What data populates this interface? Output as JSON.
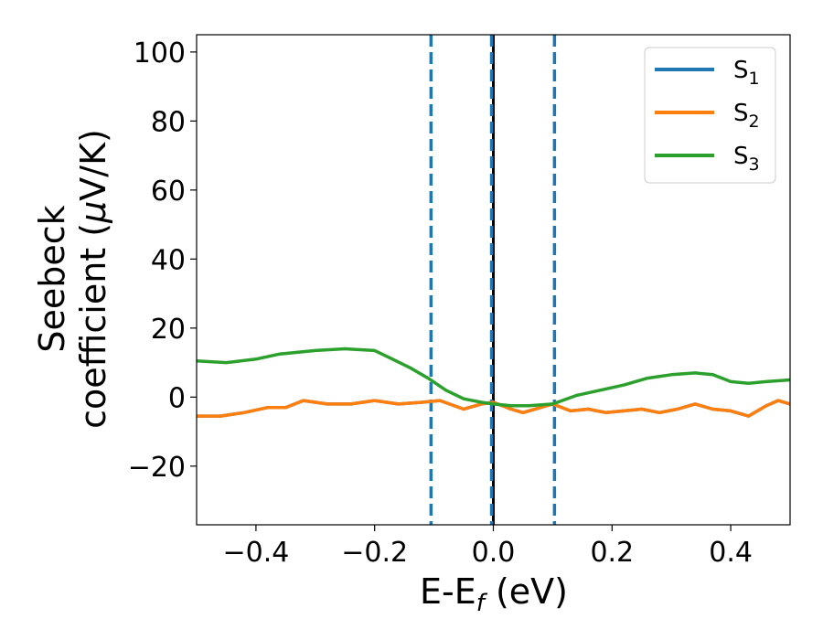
{
  "chart_data": {
    "type": "line",
    "xlabel": {
      "main": "E-E",
      "sub": "f",
      "unit": " (eV)"
    },
    "ylabel": {
      "line1": "Seebeck",
      "line2_prefix": "coefficient  (",
      "mu": "μ",
      "line2_suffix": "V/K)"
    },
    "xlim": [
      -0.5,
      0.5
    ],
    "ylim": [
      -37,
      105
    ],
    "xticks": [
      -0.4,
      -0.2,
      0.0,
      0.2,
      0.4
    ],
    "xtick_labels": [
      "−0.4",
      "−0.2",
      "0.0",
      "0.2",
      "0.4"
    ],
    "yticks": [
      -20,
      0,
      20,
      40,
      60,
      80,
      100
    ],
    "ytick_labels": [
      "−20",
      "0",
      "20",
      "40",
      "60",
      "80",
      "100"
    ],
    "legend_position": "top-right",
    "series": [
      {
        "name": "S",
        "subscript": "1",
        "color": "#1f77b4",
        "x": [
          -0.5,
          -0.46,
          -0.42,
          -0.38,
          -0.35,
          -0.32,
          -0.28,
          -0.24,
          -0.2,
          -0.16,
          -0.12,
          -0.09,
          -0.05,
          -0.02,
          0.0,
          0.03,
          0.05,
          0.08,
          0.1,
          0.13,
          0.16,
          0.19,
          0.22,
          0.25,
          0.28,
          0.31,
          0.34,
          0.37,
          0.4,
          0.43,
          0.46,
          0.48,
          0.5
        ],
        "y": [
          -5.5,
          -5.5,
          -4.5,
          -3.0,
          -3.0,
          -1.0,
          -2.0,
          -2.0,
          -1.0,
          -2.0,
          -1.5,
          -1.0,
          -3.5,
          -2.0,
          -1.5,
          -3.5,
          -4.5,
          -3.0,
          -2.0,
          -4.0,
          -3.5,
          -4.5,
          -4.0,
          -3.5,
          -4.5,
          -3.5,
          -2.0,
          -3.5,
          -4.0,
          -5.5,
          -2.5,
          -1.0,
          -2.0
        ]
      },
      {
        "name": "S",
        "subscript": "2",
        "color": "#ff7f0e",
        "x": [
          -0.5,
          -0.46,
          -0.42,
          -0.38,
          -0.35,
          -0.32,
          -0.28,
          -0.24,
          -0.2,
          -0.16,
          -0.12,
          -0.09,
          -0.05,
          -0.02,
          0.0,
          0.03,
          0.05,
          0.08,
          0.1,
          0.13,
          0.16,
          0.19,
          0.22,
          0.25,
          0.28,
          0.31,
          0.34,
          0.37,
          0.4,
          0.43,
          0.46,
          0.48,
          0.5
        ],
        "y": [
          -5.5,
          -5.5,
          -4.5,
          -3.0,
          -3.0,
          -1.0,
          -2.0,
          -2.0,
          -1.0,
          -2.0,
          -1.5,
          -1.0,
          -3.5,
          -2.0,
          -1.5,
          -3.5,
          -4.5,
          -3.0,
          -2.0,
          -4.0,
          -3.5,
          -4.5,
          -4.0,
          -3.5,
          -4.5,
          -3.5,
          -2.0,
          -3.5,
          -4.0,
          -5.5,
          -2.5,
          -1.0,
          -2.0
        ]
      },
      {
        "name": "S",
        "subscript": "3",
        "color": "#2ca02c",
        "x": [
          -0.5,
          -0.45,
          -0.4,
          -0.36,
          -0.3,
          -0.25,
          -0.2,
          -0.17,
          -0.14,
          -0.11,
          -0.08,
          -0.05,
          -0.02,
          0.0,
          0.03,
          0.06,
          0.1,
          0.14,
          0.18,
          0.22,
          0.26,
          0.3,
          0.34,
          0.37,
          0.4,
          0.43,
          0.46,
          0.5
        ],
        "y": [
          10.5,
          10.0,
          11.0,
          12.5,
          13.5,
          14.0,
          13.5,
          11.0,
          8.5,
          5.5,
          2.0,
          -0.5,
          -1.5,
          -2.0,
          -2.5,
          -2.5,
          -2.0,
          0.5,
          2.0,
          3.5,
          5.5,
          6.5,
          7.0,
          6.5,
          4.5,
          4.0,
          4.5,
          5.0
        ]
      }
    ],
    "vlines": [
      {
        "x": -0.105,
        "color": "#1f77b4",
        "style": "dashed"
      },
      {
        "x": 0.0,
        "color": "#000000",
        "style": "solid"
      },
      {
        "x": -0.003,
        "color": "#1f77b4",
        "style": "dashed"
      },
      {
        "x": 0.103,
        "color": "#1f77b4",
        "style": "dashed"
      }
    ]
  }
}
